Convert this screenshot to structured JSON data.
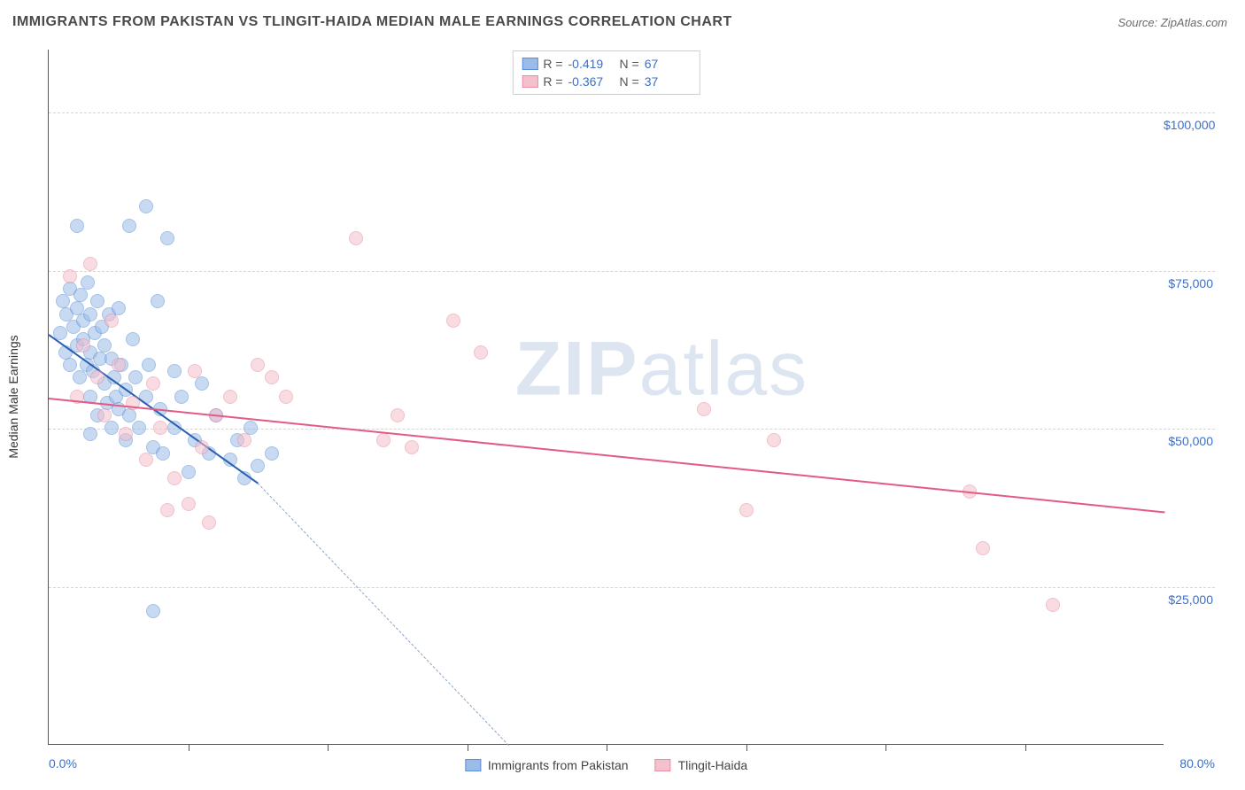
{
  "header": {
    "title": "IMMIGRANTS FROM PAKISTAN VS TLINGIT-HAIDA MEDIAN MALE EARNINGS CORRELATION CHART",
    "source": "Source: ZipAtlas.com"
  },
  "watermark": {
    "bold": "ZIP",
    "light": "atlas"
  },
  "chart": {
    "type": "scatter",
    "ylabel": "Median Male Earnings",
    "xlim": [
      0,
      80
    ],
    "ylim": [
      0,
      110000
    ],
    "xlim_labels": [
      "0.0%",
      "80.0%"
    ],
    "ytick_values": [
      25000,
      50000,
      75000,
      100000
    ],
    "ytick_labels": [
      "$25,000",
      "$50,000",
      "$75,000",
      "$100,000"
    ],
    "xtick_step": 10,
    "background_color": "#ffffff",
    "grid_color": "#d5d5d5",
    "axis_color": "#555555",
    "label_color": "#3b6fc9",
    "marker_radius": 8,
    "marker_opacity": 0.55,
    "series": [
      {
        "name": "Immigrants from Pakistan",
        "color_fill": "#9bbce8",
        "color_stroke": "#5a8fd6",
        "r_value": "-0.419",
        "n_value": "67",
        "trend": {
          "x1": 0,
          "y1": 65000,
          "x2": 15,
          "y2": 41500,
          "solid_color": "#2a5fb0",
          "dash_to_x": 33,
          "dash_to_y": 0
        },
        "points": [
          [
            0.8,
            65000
          ],
          [
            1.0,
            70000
          ],
          [
            1.2,
            62000
          ],
          [
            1.3,
            68000
          ],
          [
            1.5,
            72000
          ],
          [
            1.5,
            60000
          ],
          [
            1.8,
            66000
          ],
          [
            2.0,
            69000
          ],
          [
            2.0,
            63000
          ],
          [
            2.0,
            82000
          ],
          [
            2.2,
            58000
          ],
          [
            2.3,
            71000
          ],
          [
            2.5,
            64000
          ],
          [
            2.5,
            67000
          ],
          [
            2.7,
            60000
          ],
          [
            2.8,
            73000
          ],
          [
            3.0,
            55000
          ],
          [
            3.0,
            62000
          ],
          [
            3.0,
            68000
          ],
          [
            3.2,
            59000
          ],
          [
            3.3,
            65000
          ],
          [
            3.5,
            52000
          ],
          [
            3.5,
            70000
          ],
          [
            3.7,
            61000
          ],
          [
            3.8,
            66000
          ],
          [
            4.0,
            57000
          ],
          [
            4.0,
            63000
          ],
          [
            4.2,
            54000
          ],
          [
            4.3,
            68000
          ],
          [
            4.5,
            50000
          ],
          [
            4.5,
            61000
          ],
          [
            4.7,
            58000
          ],
          [
            4.8,
            55000
          ],
          [
            5.0,
            69000
          ],
          [
            5.0,
            53000
          ],
          [
            5.2,
            60000
          ],
          [
            5.5,
            48000
          ],
          [
            5.5,
            56000
          ],
          [
            5.8,
            52000
          ],
          [
            5.8,
            82000
          ],
          [
            6.0,
            64000
          ],
          [
            6.2,
            58000
          ],
          [
            6.5,
            50000
          ],
          [
            7.0,
            55000
          ],
          [
            7.0,
            85000
          ],
          [
            7.2,
            60000
          ],
          [
            7.5,
            47000
          ],
          [
            7.8,
            70000
          ],
          [
            8.0,
            53000
          ],
          [
            8.2,
            46000
          ],
          [
            8.5,
            80000
          ],
          [
            9.0,
            59000
          ],
          [
            9.0,
            50000
          ],
          [
            9.5,
            55000
          ],
          [
            10.0,
            43000
          ],
          [
            10.5,
            48000
          ],
          [
            11.0,
            57000
          ],
          [
            11.5,
            46000
          ],
          [
            12.0,
            52000
          ],
          [
            13.0,
            45000
          ],
          [
            13.5,
            48000
          ],
          [
            14.0,
            42000
          ],
          [
            14.5,
            50000
          ],
          [
            15.0,
            44000
          ],
          [
            16.0,
            46000
          ],
          [
            7.5,
            21000
          ],
          [
            3.0,
            49000
          ]
        ]
      },
      {
        "name": "Tlingit-Haida",
        "color_fill": "#f4c0cc",
        "color_stroke": "#e88ba4",
        "r_value": "-0.367",
        "n_value": "37",
        "trend": {
          "x1": 0,
          "y1": 55000,
          "x2": 80,
          "y2": 37000,
          "solid_color": "#e35a85"
        },
        "points": [
          [
            1.5,
            74000
          ],
          [
            2.0,
            55000
          ],
          [
            2.5,
            63000
          ],
          [
            3.0,
            76000
          ],
          [
            3.5,
            58000
          ],
          [
            4.0,
            52000
          ],
          [
            4.5,
            67000
          ],
          [
            5.0,
            60000
          ],
          [
            5.5,
            49000
          ],
          [
            6.0,
            54000
          ],
          [
            7.0,
            45000
          ],
          [
            7.5,
            57000
          ],
          [
            8.0,
            50000
          ],
          [
            8.5,
            37000
          ],
          [
            9.0,
            42000
          ],
          [
            10.0,
            38000
          ],
          [
            10.5,
            59000
          ],
          [
            11.0,
            47000
          ],
          [
            11.5,
            35000
          ],
          [
            12.0,
            52000
          ],
          [
            13.0,
            55000
          ],
          [
            14.0,
            48000
          ],
          [
            15.0,
            60000
          ],
          [
            16.0,
            58000
          ],
          [
            17.0,
            55000
          ],
          [
            22.0,
            80000
          ],
          [
            24.0,
            48000
          ],
          [
            25.0,
            52000
          ],
          [
            26.0,
            47000
          ],
          [
            29.0,
            67000
          ],
          [
            31.0,
            62000
          ],
          [
            47.0,
            53000
          ],
          [
            52.0,
            48000
          ],
          [
            50.0,
            37000
          ],
          [
            66.0,
            40000
          ],
          [
            67.0,
            31000
          ],
          [
            72.0,
            22000
          ]
        ]
      }
    ]
  }
}
